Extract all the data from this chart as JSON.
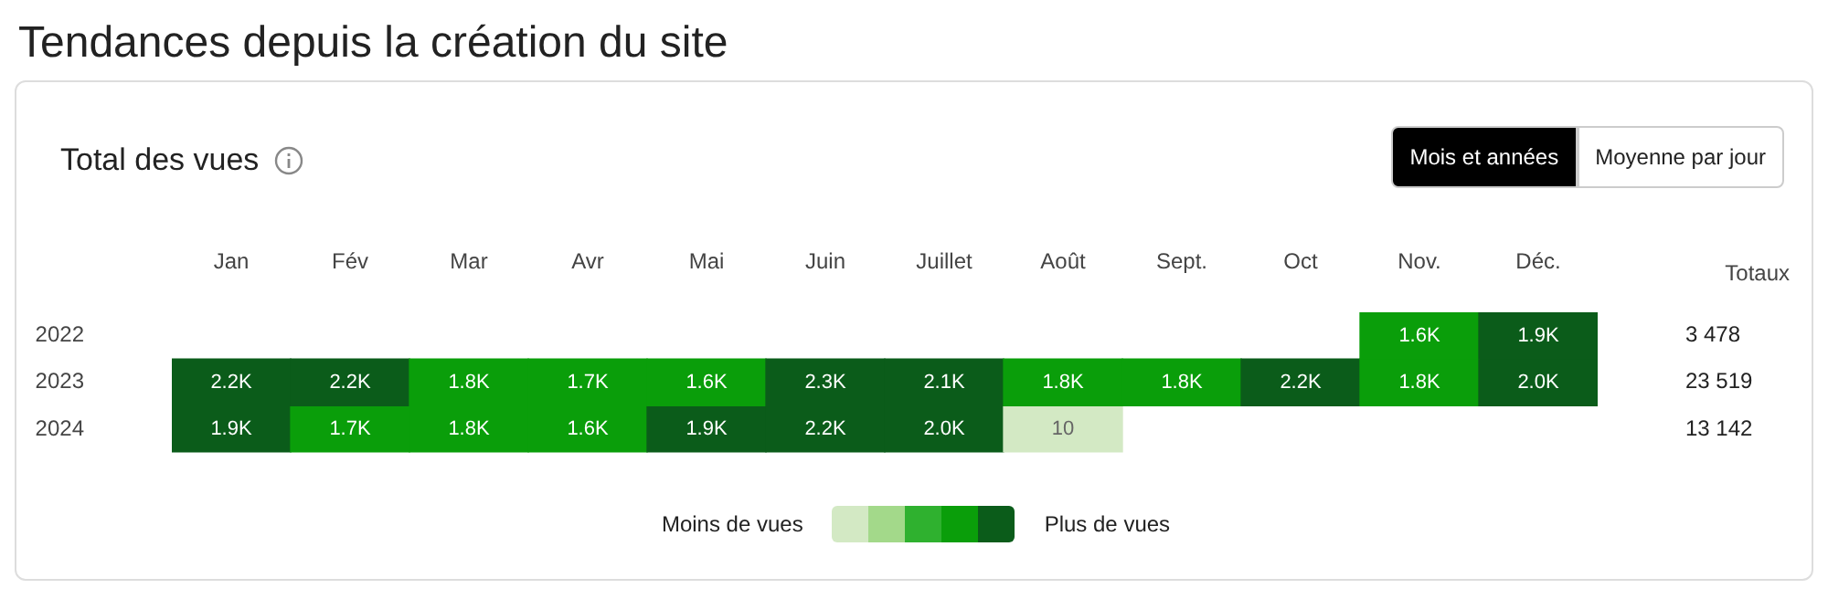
{
  "chart_data": {
    "type": "heatmap",
    "title": "Tendances depuis la création du site",
    "subtitle": "Total des vues",
    "categories": [
      "Jan",
      "Fév",
      "Mar",
      "Avr",
      "Mai",
      "Juin",
      "Juillet",
      "Août",
      "Sept.",
      "Oct",
      "Nov.",
      "Déc."
    ],
    "y_categories": [
      "2022",
      "2023",
      "2024"
    ],
    "y2_categories": [
      "3 478",
      "23 519",
      "13 142"
    ],
    "cells": [
      [
        null,
        null,
        null,
        null,
        null,
        null,
        null,
        null,
        null,
        null,
        1600,
        1900
      ],
      [
        2200,
        2200,
        1800,
        1700,
        1600,
        2300,
        2100,
        1800,
        1800,
        2200,
        1800,
        2000
      ],
      [
        1900,
        1700,
        1800,
        1600,
        1900,
        2200,
        2000,
        10,
        null,
        null,
        null,
        null
      ]
    ],
    "cell_labels": [
      [
        null,
        null,
        null,
        null,
        null,
        null,
        null,
        null,
        null,
        null,
        "1.6K",
        "1.9K"
      ],
      [
        "2.2K",
        "2.2K",
        "1.8K",
        "1.7K",
        "1.6K",
        "2.3K",
        "2.1K",
        "1.8K",
        "1.8K",
        "2.2K",
        "1.8K",
        "2.0K"
      ],
      [
        "1.9K",
        "1.7K",
        "1.8K",
        "1.6K",
        "1.9K",
        "2.2K",
        "2.0K",
        "10",
        null,
        null,
        null,
        null
      ]
    ],
    "colors": [
      "#d3e9c4",
      "#a3d98a",
      "#2fb12f",
      "#0a9e0a",
      "#0b5c1a"
    ],
    "annotations": [
      "Mois et années",
      "Moyenne par jour",
      "Moins de vues",
      "Plus de vues",
      "Totaux"
    ]
  }
}
